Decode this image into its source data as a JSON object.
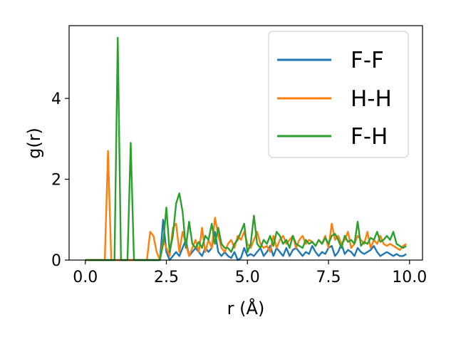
{
  "chart_data": {
    "type": "line",
    "xlabel": "r (Å)",
    "ylabel": "g(r)",
    "xlim": [
      -0.5,
      10.4
    ],
    "ylim": [
      0,
      5.8
    ],
    "xticks": [
      0,
      2.5,
      5,
      7.5,
      10
    ],
    "xtick_labels": [
      "0.0",
      "2.5",
      "5.0",
      "7.5",
      "10.0"
    ],
    "yticks": [
      0,
      2,
      4
    ],
    "ytick_labels": [
      "0",
      "2",
      "4"
    ],
    "legend_position": "top-right",
    "grid": false,
    "series": [
      {
        "name": "F-F",
        "color": "#1f77b4",
        "x": [
          0,
          0.1,
          0.2,
          0.3,
          0.4,
          0.5,
          0.6,
          0.7,
          0.8,
          0.9,
          1.0,
          1.1,
          1.2,
          1.3,
          1.4,
          1.5,
          1.6,
          1.7,
          1.8,
          1.9,
          2.0,
          2.1,
          2.2,
          2.3,
          2.4,
          2.5,
          2.6,
          2.7,
          2.8,
          2.9,
          3.0,
          3.1,
          3.2,
          3.3,
          3.4,
          3.5,
          3.6,
          3.7,
          3.8,
          3.9,
          4.0,
          4.1,
          4.2,
          4.3,
          4.4,
          4.5,
          4.6,
          4.7,
          4.8,
          4.9,
          5.0,
          5.1,
          5.2,
          5.3,
          5.4,
          5.5,
          5.6,
          5.7,
          5.8,
          5.9,
          6.0,
          6.1,
          6.2,
          6.3,
          6.4,
          6.5,
          6.6,
          6.7,
          6.8,
          6.9,
          7.0,
          7.1,
          7.2,
          7.3,
          7.4,
          7.5,
          7.6,
          7.7,
          7.8,
          7.9,
          8.0,
          8.1,
          8.2,
          8.3,
          8.4,
          8.5,
          8.6,
          8.7,
          8.8,
          8.9,
          9.0,
          9.1,
          9.2,
          9.3,
          9.4,
          9.5,
          9.6,
          9.7,
          9.8,
          9.9
        ],
        "values": [
          0,
          0,
          0,
          0,
          0,
          0,
          0,
          0,
          0,
          0,
          0,
          0,
          0,
          0,
          0,
          0,
          0,
          0,
          0,
          0,
          0,
          0,
          0,
          0,
          1.0,
          0.2,
          0,
          0.1,
          0.2,
          0.1,
          0.3,
          0.5,
          0.1,
          0.2,
          0.3,
          0.2,
          0.1,
          0.3,
          0.2,
          0.3,
          0.7,
          0.2,
          0.1,
          0.2,
          0.1,
          0.05,
          0.2,
          0,
          0.05,
          0.3,
          0.1,
          0.15,
          0.1,
          0.2,
          0.3,
          0.1,
          0.2,
          0.35,
          0.1,
          0.3,
          0.2,
          0.1,
          0.3,
          0.1,
          0.25,
          0.3,
          0.2,
          0.1,
          0.2,
          0.15,
          0.35,
          0.2,
          0.1,
          0.2,
          0.15,
          0.3,
          0.35,
          0.1,
          0.2,
          0.4,
          0.15,
          0.25,
          0.2,
          0.1,
          0.3,
          0.2,
          0.15,
          0.2,
          0.25,
          0.35,
          0.2,
          0.1,
          0.15,
          0.2,
          0.15,
          0.1,
          0.15,
          0.1,
          0.1,
          0.15
        ]
      },
      {
        "name": "H-H",
        "color": "#ff7f0e",
        "x": [
          0,
          0.1,
          0.2,
          0.3,
          0.4,
          0.5,
          0.6,
          0.7,
          0.8,
          0.9,
          1.0,
          1.1,
          1.2,
          1.3,
          1.4,
          1.5,
          1.6,
          1.7,
          1.8,
          1.9,
          2.0,
          2.1,
          2.2,
          2.3,
          2.4,
          2.5,
          2.6,
          2.7,
          2.8,
          2.9,
          3.0,
          3.1,
          3.2,
          3.3,
          3.4,
          3.5,
          3.6,
          3.7,
          3.8,
          3.9,
          4.0,
          4.1,
          4.2,
          4.3,
          4.4,
          4.5,
          4.6,
          4.7,
          4.8,
          4.9,
          5.0,
          5.1,
          5.2,
          5.3,
          5.4,
          5.5,
          5.6,
          5.7,
          5.8,
          5.9,
          6.0,
          6.1,
          6.2,
          6.3,
          6.4,
          6.5,
          6.6,
          6.7,
          6.8,
          6.9,
          7.0,
          7.1,
          7.2,
          7.3,
          7.4,
          7.5,
          7.6,
          7.7,
          7.8,
          7.9,
          8.0,
          8.1,
          8.2,
          8.3,
          8.4,
          8.5,
          8.6,
          8.7,
          8.8,
          8.9,
          9.0,
          9.1,
          9.2,
          9.3,
          9.4,
          9.5,
          9.6,
          9.7,
          9.8,
          9.9
        ],
        "values": [
          0,
          0,
          0,
          0,
          0,
          0,
          0,
          2.7,
          0,
          0,
          0,
          0,
          0,
          0,
          0,
          0,
          0,
          0,
          0,
          0,
          0.7,
          0.6,
          0.2,
          0,
          0.5,
          0.3,
          0.1,
          0.8,
          0.9,
          0.2,
          0.7,
          0.4,
          0.1,
          0.3,
          0.5,
          0.2,
          0.8,
          0.2,
          0.5,
          0.3,
          1.05,
          0.6,
          0.3,
          0.2,
          0.4,
          0.5,
          0.3,
          0.6,
          0.5,
          0.7,
          0.4,
          0.3,
          0.5,
          0.7,
          0.4,
          0.3,
          0.35,
          0.2,
          0.6,
          0.3,
          0.5,
          0.6,
          0.4,
          0.5,
          0.6,
          0.3,
          0.5,
          0.6,
          0.4,
          0.5,
          0.45,
          0.35,
          0.5,
          0.4,
          0.6,
          0.3,
          0.9,
          0.5,
          0.6,
          0.4,
          0.5,
          0.7,
          0.3,
          0.4,
          0.6,
          0.5,
          0.4,
          0.7,
          0.3,
          0.5,
          0.4,
          0.6,
          0.4,
          0.35,
          0.4,
          0.35,
          0.3,
          0.25,
          0.35,
          0.4
        ]
      },
      {
        "name": "F-H",
        "color": "#2ca02c",
        "x": [
          0,
          0.1,
          0.2,
          0.3,
          0.4,
          0.5,
          0.6,
          0.7,
          0.8,
          0.9,
          1.0,
          1.1,
          1.2,
          1.3,
          1.4,
          1.5,
          1.6,
          1.7,
          1.8,
          1.9,
          2.0,
          2.1,
          2.2,
          2.3,
          2.4,
          2.5,
          2.6,
          2.7,
          2.8,
          2.9,
          3.0,
          3.1,
          3.2,
          3.3,
          3.4,
          3.5,
          3.6,
          3.7,
          3.8,
          3.9,
          4.0,
          4.1,
          4.2,
          4.3,
          4.4,
          4.5,
          4.6,
          4.7,
          4.8,
          4.9,
          5.0,
          5.1,
          5.2,
          5.3,
          5.4,
          5.5,
          5.6,
          5.7,
          5.8,
          5.9,
          6.0,
          6.1,
          6.2,
          6.3,
          6.4,
          6.5,
          6.6,
          6.7,
          6.8,
          6.9,
          7.0,
          7.1,
          7.2,
          7.3,
          7.4,
          7.5,
          7.6,
          7.7,
          7.8,
          7.9,
          8.0,
          8.1,
          8.2,
          8.3,
          8.4,
          8.5,
          8.6,
          8.7,
          8.8,
          8.9,
          9.0,
          9.1,
          9.2,
          9.3,
          9.4,
          9.5,
          9.6,
          9.7,
          9.8,
          9.9
        ],
        "values": [
          0,
          0,
          0,
          0,
          0,
          0,
          0,
          0,
          0,
          0,
          5.5,
          0,
          0,
          0,
          2.9,
          0,
          0,
          0,
          0,
          0,
          0,
          0,
          0,
          0,
          0.4,
          1.3,
          0.2,
          0.6,
          1.4,
          1.65,
          1.2,
          0.3,
          0.95,
          0.4,
          0.3,
          0.45,
          0.3,
          0.6,
          0.5,
          0.9,
          0.4,
          0.8,
          0.4,
          0.3,
          0.3,
          0.2,
          0.4,
          0.5,
          0.7,
          0.9,
          0.2,
          0.4,
          1.1,
          0.4,
          0.3,
          0.5,
          0.4,
          0.6,
          0.35,
          0.7,
          0.6,
          0.4,
          0.5,
          0.3,
          0.6,
          0.4,
          0.35,
          0.3,
          0.5,
          0.4,
          0.45,
          0.35,
          0.5,
          0.4,
          0.55,
          0.4,
          0.6,
          0.65,
          0.5,
          0.3,
          0.6,
          0.45,
          0.5,
          0.4,
          0.95,
          0.35,
          0.45,
          0.4,
          0.55,
          0.5,
          0.7,
          0.45,
          0.5,
          0.6,
          0.5,
          0.7,
          0.4,
          0.35,
          0.3,
          0.35
        ]
      }
    ]
  }
}
